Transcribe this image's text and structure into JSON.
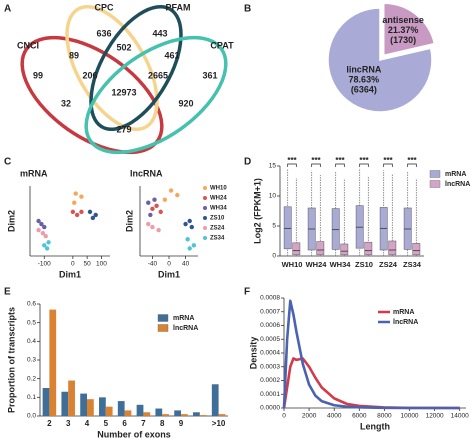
{
  "chart_data": [
    {
      "type": "venn",
      "panel": "A",
      "sets": [
        {
          "name": "CNCI",
          "color": "#c8393f"
        },
        {
          "name": "CPC",
          "color": "#f7d48e"
        },
        {
          "name": "PFAM",
          "color": "#1f4e5b"
        },
        {
          "name": "CPAT",
          "color": "#45c1ae"
        }
      ],
      "values": [
        636,
        443,
        89,
        502,
        461,
        99,
        361,
        206,
        2665,
        12973,
        32,
        920,
        279
      ]
    },
    {
      "type": "pie",
      "panel": "B",
      "categories": [
        "lincRNA",
        "antisense"
      ],
      "values": [
        78.63,
        21.37
      ],
      "value_labels": [
        "78.63%",
        "21.37%"
      ],
      "counts": [
        6364,
        1730
      ],
      "count_labels": [
        "(6364)",
        "(1730)"
      ],
      "colors": [
        "#a9aad6",
        "#c89ac3"
      ]
    },
    {
      "type": "scatter",
      "panel": "C",
      "title": "mRNA",
      "xlabel": "Dim1",
      "ylabel": "Dim2",
      "xlim": [
        -150,
        130
      ],
      "ylim": [
        -115,
        115
      ],
      "xticks": [
        -100,
        0,
        50,
        100
      ],
      "series": [
        {
          "color": "#f5a85a",
          "x": [
            10,
            30,
            5
          ],
          "y": [
            90,
            80,
            60
          ]
        },
        {
          "color": "#d9534f",
          "x": [
            0,
            15,
            30
          ],
          "y": [
            30,
            20,
            30
          ]
        },
        {
          "color": "#6a5fa8",
          "x": [
            -110,
            -100,
            -120
          ],
          "y": [
            -10,
            -20,
            0
          ]
        },
        {
          "color": "#2f5597",
          "x": [
            60,
            70,
            80
          ],
          "y": [
            30,
            10,
            20
          ]
        },
        {
          "color": "#f19aa8",
          "x": [
            -120,
            -105,
            -95
          ],
          "y": [
            -30,
            -40,
            -50
          ]
        },
        {
          "color": "#4fc3d9",
          "x": [
            -100,
            -90,
            -85
          ],
          "y": [
            -80,
            -90,
            -70
          ]
        }
      ]
    },
    {
      "type": "scatter",
      "title": "lncRNA",
      "xlabel": "Dim1",
      "ylabel": "Dim2",
      "xlim": [
        -70,
        70
      ],
      "ylim": [
        -115,
        115
      ],
      "xticks": [
        -40,
        0,
        40
      ],
      "legend": "right",
      "series": [
        {
          "name": "WH10",
          "color": "#f5a85a",
          "x": [
            5,
            20,
            -10
          ],
          "y": [
            100,
            85,
            70
          ]
        },
        {
          "name": "WH24",
          "color": "#d9534f",
          "x": [
            -40,
            -30,
            -20
          ],
          "y": [
            40,
            50,
            30
          ]
        },
        {
          "name": "WH34",
          "color": "#6a5fa8",
          "x": [
            -50,
            -45,
            -35
          ],
          "y": [
            60,
            20,
            70
          ]
        },
        {
          "name": "ZS10",
          "color": "#2f5597",
          "x": [
            40,
            50,
            55
          ],
          "y": [
            -10,
            0,
            -20
          ]
        },
        {
          "name": "ZS24",
          "color": "#f19aa8",
          "x": [
            -40,
            -25,
            -50
          ],
          "y": [
            -20,
            -30,
            -10
          ]
        },
        {
          "name": "ZS34",
          "color": "#4fc3d9",
          "x": [
            45,
            60,
            50
          ],
          "y": [
            -60,
            -80,
            -90
          ]
        }
      ]
    },
    {
      "type": "box",
      "panel": "D",
      "ylabel": "Log2 (FPKM+1)",
      "categories": [
        "WH10",
        "WH24",
        "WH34",
        "ZS10",
        "ZS24",
        "ZS34"
      ],
      "ylim": [
        0,
        15
      ],
      "yticks": [
        0,
        5,
        10,
        15
      ],
      "annotations": [
        "***",
        "***",
        "***",
        "***",
        "***",
        "***"
      ],
      "legend": "right",
      "series": [
        {
          "name": "mRNA",
          "color": "#a9aad6",
          "min": [
            0,
            0,
            0,
            0,
            0,
            0
          ],
          "q1": [
            1.2,
            1.0,
            1.1,
            1.3,
            1.0,
            1.1
          ],
          "median": [
            4.6,
            4.5,
            4.4,
            4.8,
            4.6,
            4.5
          ],
          "q3": [
            8.2,
            8.0,
            7.9,
            8.4,
            8.1,
            8.0
          ],
          "max": [
            14.5,
            14.2,
            14.0,
            14.6,
            14.3,
            14.1
          ]
        },
        {
          "name": "lncRNA",
          "color": "#d6a3c8",
          "min": [
            0,
            0,
            0,
            0,
            0,
            0
          ],
          "q1": [
            0.2,
            0.2,
            0.2,
            0.2,
            0.2,
            0.2
          ],
          "median": [
            0.9,
            1.0,
            0.8,
            0.9,
            1.0,
            0.9
          ],
          "q3": [
            2.2,
            2.4,
            2.0,
            2.3,
            2.5,
            2.1
          ],
          "max": [
            13.0,
            13.5,
            12.8,
            13.2,
            13.6,
            12.9
          ]
        }
      ]
    },
    {
      "type": "bar",
      "panel": "E",
      "xlabel": "Number of exons",
      "ylabel": "Proportion of transcripts",
      "categories": [
        "2",
        "3",
        "4",
        "5",
        "6",
        "7",
        "8",
        "9",
        null,
        ">10"
      ],
      "ylim": [
        0,
        0.6
      ],
      "yticks": [
        {
          "value": 0,
          "label": "0.0"
        },
        {
          "value": 0.1,
          "label": "0.1"
        },
        {
          "value": 0.2,
          "label": "0.2"
        },
        {
          "value": 0.3,
          "label": "0.3"
        },
        {
          "value": 0.4,
          "label": "0.4"
        },
        {
          "value": 0.5,
          "label": "0.5"
        },
        {
          "value": 0.6,
          "label": "0.6"
        }
      ],
      "legend": "upper right",
      "series": [
        {
          "name": "mRNA",
          "color": "#3f6f98",
          "values": [
            0.15,
            0.13,
            0.12,
            0.1,
            0.08,
            0.06,
            0.04,
            0.03,
            0.02,
            0.17
          ]
        },
        {
          "name": "lncRNA",
          "color": "#d98232",
          "values": [
            0.57,
            0.19,
            0.09,
            0.05,
            0.03,
            0.02,
            0.01,
            0.01,
            0.005,
            0.01
          ]
        }
      ]
    },
    {
      "type": "line",
      "panel": "F",
      "xlabel": "Length",
      "ylabel": "Density",
      "x": [
        0,
        250,
        500,
        750,
        1000,
        1500,
        2000,
        2500,
        3000,
        4000,
        5000,
        6000,
        8000,
        10000,
        14000
      ],
      "xlim": [
        0,
        14500
      ],
      "xticks": [
        0,
        2000,
        4000,
        6000,
        8000,
        10000,
        12000,
        14000
      ],
      "ylim": [
        0,
        0.0008
      ],
      "yticks": [
        {
          "value": 0,
          "label": "0.0000"
        },
        {
          "value": 0.0001,
          "label": "0.0001"
        },
        {
          "value": 0.0002,
          "label": "0.0002"
        },
        {
          "value": 0.0003,
          "label": "0.0003"
        },
        {
          "value": 0.0004,
          "label": "0.0004"
        },
        {
          "value": 0.0005,
          "label": "0.0005"
        },
        {
          "value": 0.0006,
          "label": "0.0006"
        },
        {
          "value": 0.0007,
          "label": "0.0007"
        },
        {
          "value": 0.0008,
          "label": "0.0008"
        }
      ],
      "legend": "upper right",
      "series": [
        {
          "name": "mRNA",
          "color": "#d23c4a",
          "values": [
            0,
            0.00015,
            0.0003,
            0.00036,
            0.00035,
            0.00036,
            0.0003,
            0.00022,
            0.00015,
            7e-05,
            3e-05,
            1.5e-05,
            4e-06,
            1e-06,
            0
          ]
        },
        {
          "name": "lncRNA",
          "color": "#4a62b0",
          "values": [
            0,
            0.0005,
            0.00078,
            0.00068,
            0.00055,
            0.00032,
            0.00017,
            9e-05,
            5e-05,
            2e-05,
            1e-05,
            5e-06,
            1e-06,
            0,
            0
          ]
        }
      ]
    }
  ]
}
